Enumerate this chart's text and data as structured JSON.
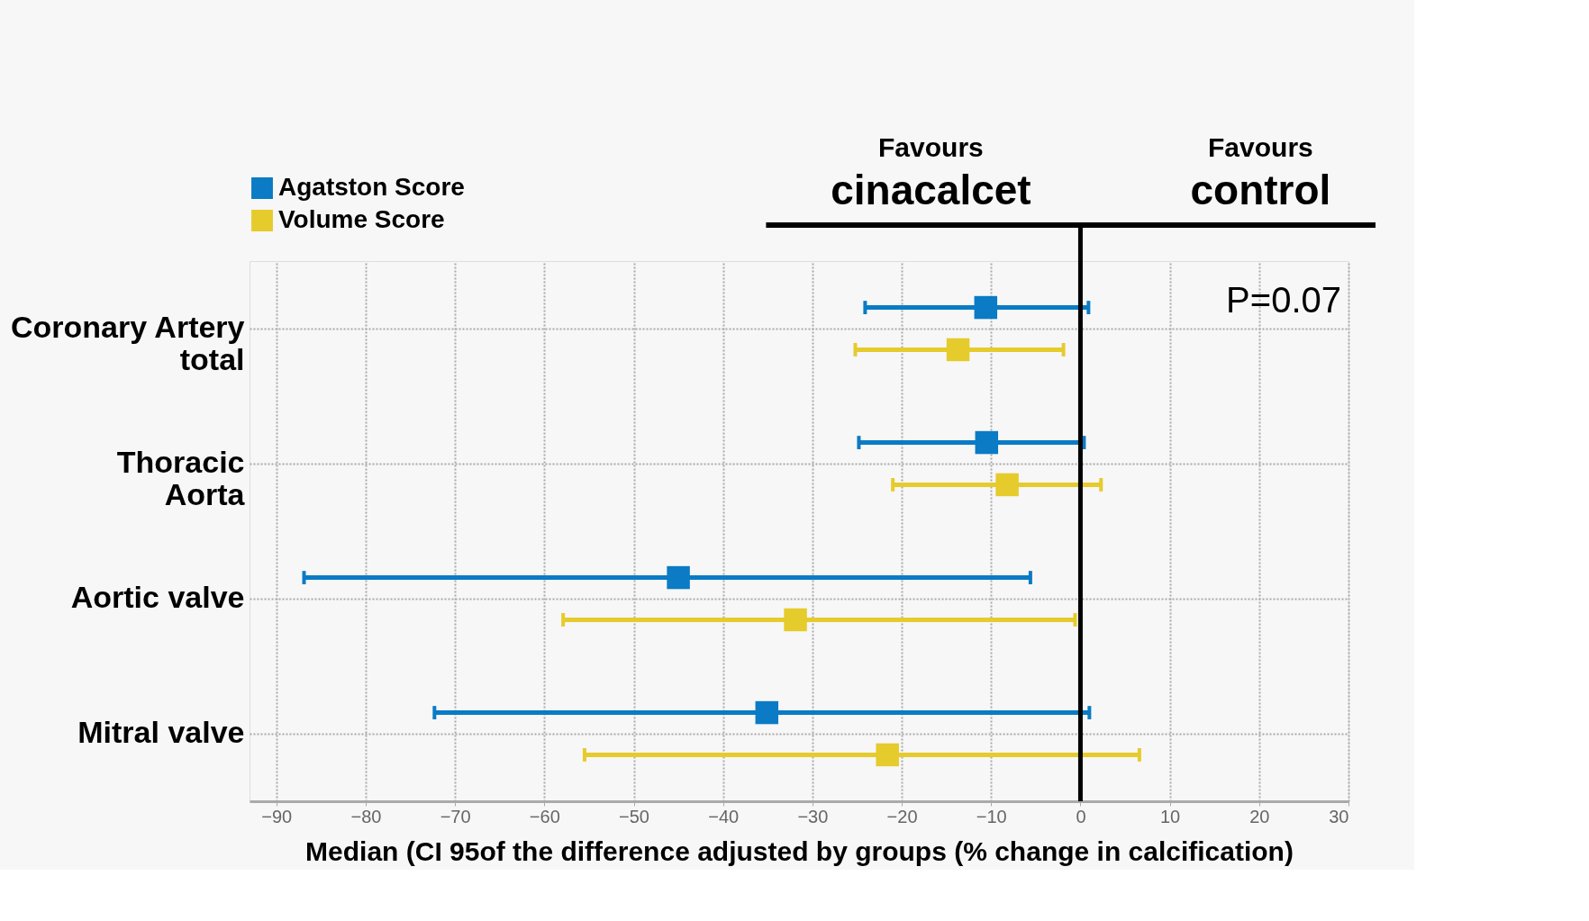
{
  "chart_data": {
    "type": "scatter",
    "orientation": "horizontal",
    "marker": "square",
    "categories": [
      "Coronary Artery\ntotal",
      "Thoracic\nAorta",
      "Aortic valve",
      "Mitral valve"
    ],
    "series": [
      {
        "name": "Agatston Score",
        "color": "#0a7bc4",
        "values": [
          -10.6,
          -10.5,
          -45,
          -35.1
        ],
        "errors": [
          [
            -24.1,
            0.9
          ],
          [
            -24.8,
            0.4
          ],
          [
            -86.9,
            -5.6
          ],
          [
            -72.3,
            1.0
          ]
        ]
      },
      {
        "name": "Volume Score",
        "color": "#e6cb2c",
        "values": [
          -13.7,
          -8.2,
          -31.9,
          -21.6
        ],
        "errors": [
          [
            -25.2,
            -1.9
          ],
          [
            -21.0,
            2.3
          ],
          [
            -57.9,
            -0.6
          ],
          [
            -55.5,
            6.6
          ]
        ]
      }
    ],
    "xlim": [
      -93,
      30
    ],
    "xticks": [
      -90,
      -80,
      -70,
      -60,
      -50,
      -40,
      -30,
      -20,
      -10,
      0,
      10,
      20,
      30
    ],
    "xlabel": "Median (CI 95of the difference adjusted by groups (% change in calcification)",
    "ref_lines": [
      {
        "axis": "x",
        "value": 0,
        "color": "#000000"
      }
    ],
    "annotations": [
      "Favours\ncinacalcet",
      "Favours\ncontrol",
      "P=0.07"
    ],
    "grid": true,
    "legend": "top left"
  }
}
